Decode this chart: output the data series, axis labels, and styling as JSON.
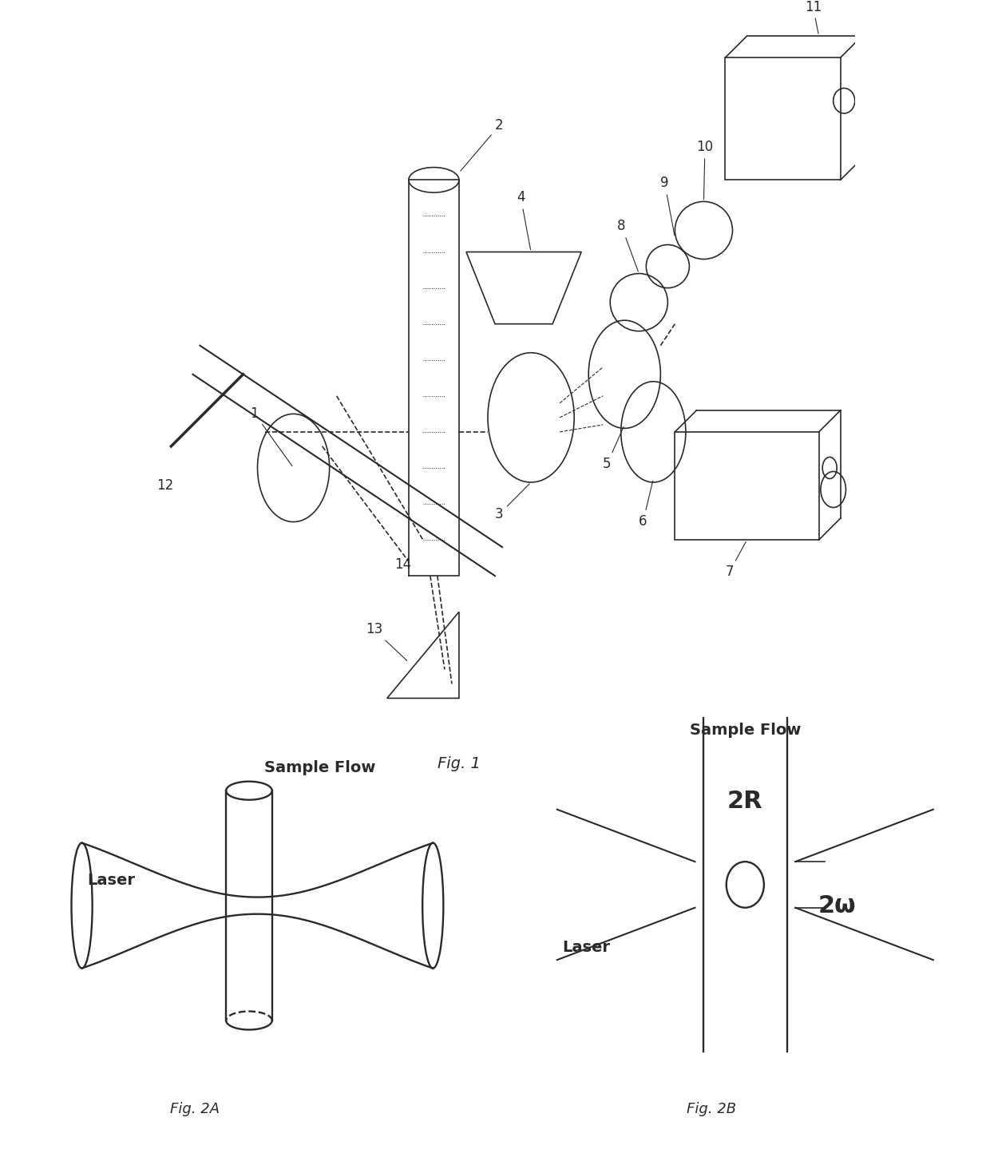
{
  "bg_color": "#ffffff",
  "line_color": "#2a2a2a",
  "fig_width": 12.4,
  "fig_height": 14.54,
  "fig1_caption": "Fig. 1",
  "fig2a_caption": "Fig. 2A",
  "fig2b_caption": "Fig. 2B",
  "fig2a_label_laser": "Laser",
  "fig2a_label_flow": "Sample Flow",
  "fig2b_label_laser": "Laser",
  "fig2b_label_flow": "Sample Flow",
  "fig2b_label_2R": "2R",
  "fig2b_label_2w": "2ω"
}
